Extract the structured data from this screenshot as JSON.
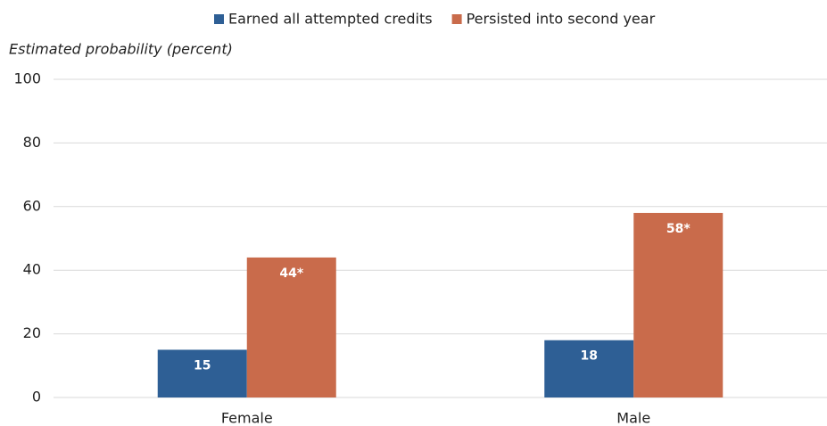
{
  "chart_data": {
    "type": "bar",
    "y_label": "Estimated probability (percent)",
    "categories": [
      "Female",
      "Male"
    ],
    "series": [
      {
        "name": "Earned all attempted credits",
        "color": "#2e5f95",
        "values": [
          15,
          18
        ]
      },
      {
        "name": "Persisted into second year",
        "color": "#c96b4b",
        "values": [
          44,
          58
        ],
        "value_labels": [
          "44*",
          "58*"
        ]
      }
    ],
    "ylim": [
      0,
      100
    ],
    "yticks": [
      0,
      20,
      40,
      60,
      80,
      100
    ],
    "grid": true,
    "legend": "top"
  }
}
